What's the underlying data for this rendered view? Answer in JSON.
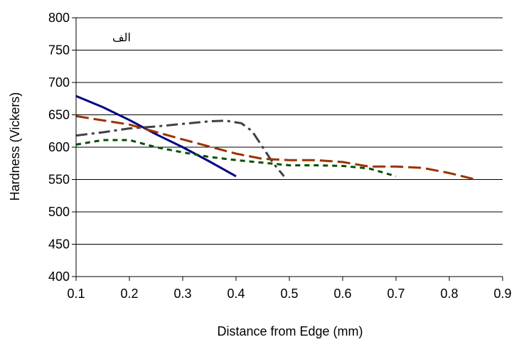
{
  "chart_data": {
    "type": "line",
    "title": "",
    "xlabel": "Distance from Edge (mm)",
    "ylabel": "Hardness (Vickers)",
    "xlim": [
      0.1,
      0.9
    ],
    "ylim": [
      400,
      800
    ],
    "xticks": [
      0.1,
      0.2,
      0.3,
      0.4,
      0.5,
      0.6,
      0.7,
      0.8,
      0.9
    ],
    "yticks": [
      400,
      450,
      500,
      550,
      600,
      650,
      700,
      750,
      800
    ],
    "xtick_labels": [
      "0.1",
      "0.2",
      "0.3",
      "0.4",
      "0.5",
      "0.6",
      "0.7",
      "0.8",
      "0.9"
    ],
    "ytick_labels": [
      "400",
      "450",
      "500",
      "550",
      "600",
      "650",
      "700",
      "750",
      "800"
    ],
    "grid": "horizontal",
    "legend": "none",
    "annotation": "الف",
    "series": [
      {
        "style": "solid",
        "color": "#000080",
        "x": [
          0.1,
          0.15,
          0.2,
          0.25,
          0.3,
          0.35,
          0.4
        ],
        "y": [
          679,
          662,
          642,
          620,
          600,
          578,
          555
        ]
      },
      {
        "style": "dashdot",
        "color": "#404040",
        "x": [
          0.1,
          0.15,
          0.2,
          0.25,
          0.3,
          0.35,
          0.38,
          0.41,
          0.43,
          0.45,
          0.47,
          0.49
        ],
        "y": [
          618,
          623,
          629,
          632,
          636,
          640,
          641,
          637,
          625,
          600,
          575,
          555
        ]
      },
      {
        "style": "dashed",
        "color": "#993300",
        "x": [
          0.1,
          0.2,
          0.3,
          0.4,
          0.45,
          0.5,
          0.55,
          0.6,
          0.65,
          0.7,
          0.75,
          0.8,
          0.85
        ],
        "y": [
          648,
          635,
          612,
          590,
          582,
          580,
          580,
          577,
          570,
          570,
          568,
          560,
          550
        ]
      },
      {
        "style": "dotted",
        "color": "#005000",
        "x": [
          0.1,
          0.15,
          0.2,
          0.25,
          0.3,
          0.35,
          0.4,
          0.45,
          0.5,
          0.55,
          0.6,
          0.65,
          0.7
        ],
        "y": [
          604,
          611,
          611,
          600,
          592,
          585,
          580,
          576,
          572,
          572,
          571,
          567,
          555
        ]
      }
    ]
  }
}
